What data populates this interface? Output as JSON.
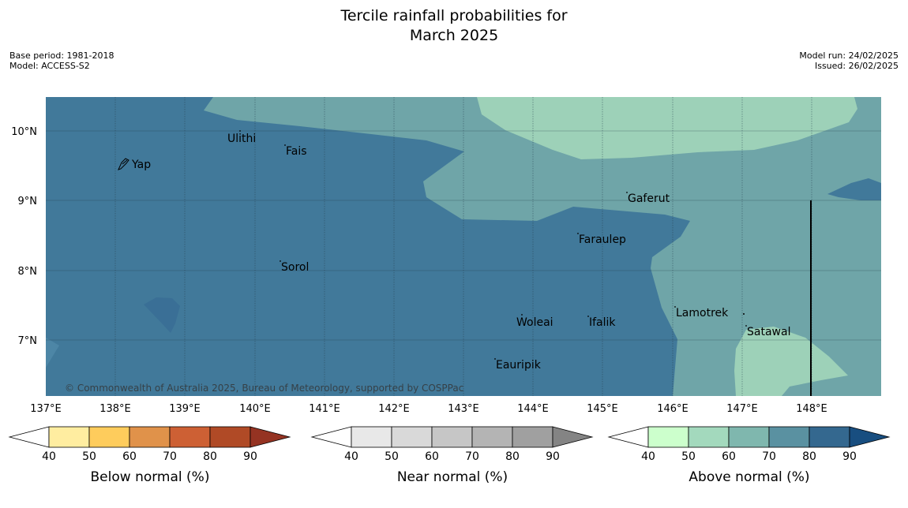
{
  "header": {
    "title_line1": "Tercile rainfall probabilities for",
    "title_line2": "March 2025",
    "base_period": "Base period: 1981-2018",
    "model": "Model: ACCESS-S2",
    "model_run": "Model run: 24/02/2025",
    "issued": "Issued: 26/02/2025"
  },
  "map": {
    "copyright": "© Commonwealth of Australia 2025, Bureau of Meteorology, supported by COSPPac",
    "lat_labels": [
      "10°N",
      "9°N",
      "8°N",
      "7°N"
    ],
    "lon_labels": [
      "137°E",
      "138°E",
      "139°E",
      "140°E",
      "141°E",
      "142°E",
      "143°E",
      "144°E",
      "145°E",
      "146°E",
      "147°E",
      "148°E"
    ],
    "places": [
      "Ulithi",
      "Yap",
      "Fais",
      "Gaferut",
      "Faraulep",
      "Sorol",
      "Lamotrek",
      "Woleai",
      "Ifalik",
      "Satawal",
      "Eauripik"
    ],
    "colors": {
      "above_80_90": "#41799a",
      "above_70_80": "#6fa5a8",
      "above_60_70": "#9dd1b8"
    }
  },
  "colorbars": [
    {
      "title": "Below normal (%)",
      "ticks": [
        "40",
        "50",
        "60",
        "70",
        "80",
        "90"
      ],
      "colors": [
        "#ffffff",
        "#ffeda0",
        "#fecc5c",
        "#e0924a",
        "#cd6034",
        "#b04a26",
        "#953322"
      ]
    },
    {
      "title": "Near normal (%)",
      "ticks": [
        "40",
        "50",
        "60",
        "70",
        "80",
        "90"
      ],
      "colors": [
        "#ffffff",
        "#e8e8e8",
        "#d9d9d9",
        "#c6c6c6",
        "#b4b4b4",
        "#a0a0a0",
        "#848484"
      ]
    },
    {
      "title": "Above normal (%)",
      "ticks": [
        "40",
        "50",
        "60",
        "70",
        "80",
        "90"
      ],
      "colors": [
        "#ffffff",
        "#ccffcc",
        "#a3d9bd",
        "#7fb7ae",
        "#5a91a1",
        "#34688f",
        "#184e80"
      ]
    }
  ]
}
